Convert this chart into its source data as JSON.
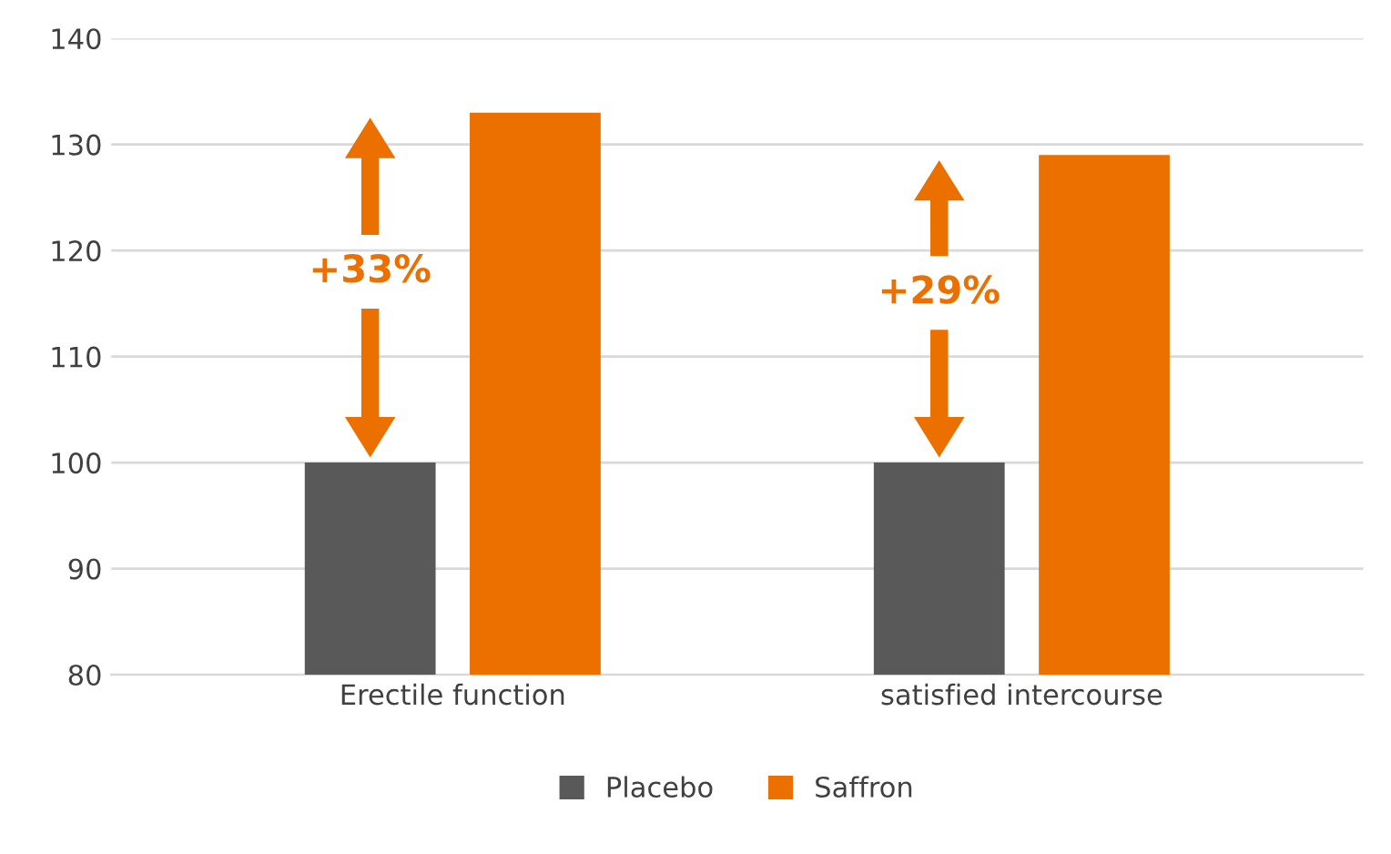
{
  "chart_data": {
    "type": "bar",
    "categories": [
      "Erectile function",
      "satisfied intercourse"
    ],
    "series": [
      {
        "name": "Placebo",
        "color": "#595959",
        "values": [
          100,
          100
        ]
      },
      {
        "name": "Saffron",
        "color": "#ec7000",
        "values": [
          133,
          129
        ]
      }
    ],
    "ylim": [
      80,
      140
    ],
    "yticks": [
      80,
      90,
      100,
      110,
      120,
      130,
      140
    ],
    "grid": "y",
    "legend": "bottom",
    "annotations": [
      "+33%",
      "+29%"
    ]
  }
}
